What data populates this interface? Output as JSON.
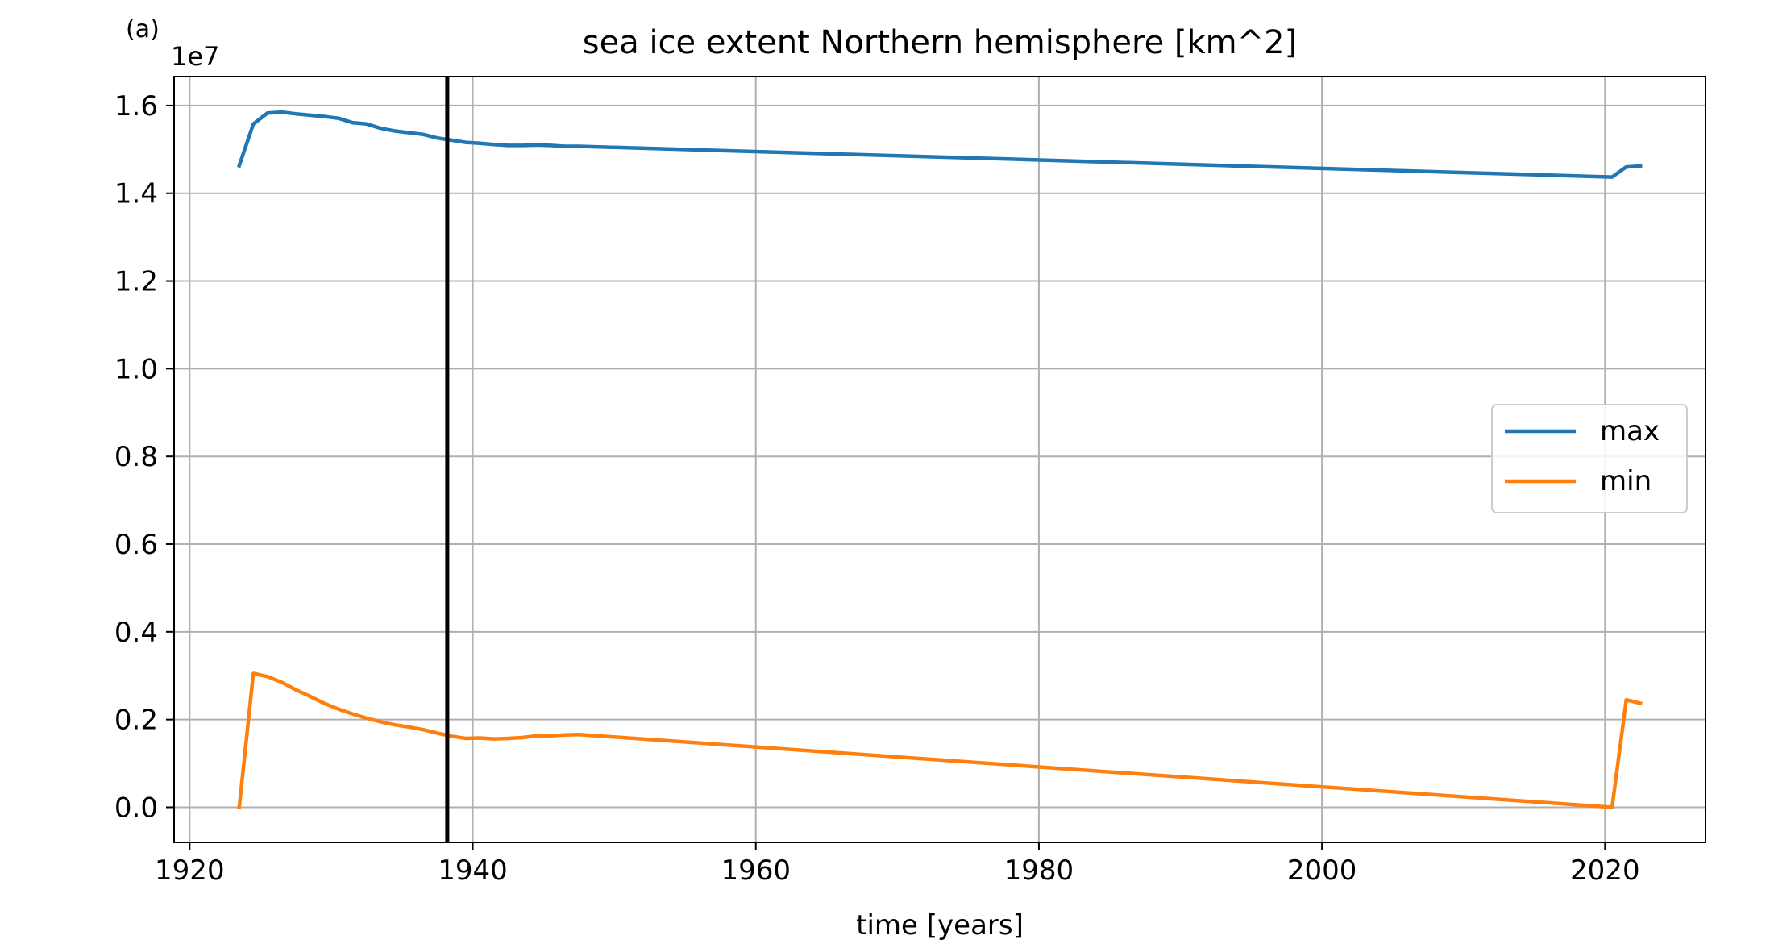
{
  "panel_label": "(a)",
  "chart_data": {
    "type": "line",
    "title": "sea ice extent Northern hemisphere [km^2]",
    "xlabel": "time [years]",
    "ylabel": "",
    "y_offset_label": "1e7",
    "y_scale": 10000000,
    "xlim": [
      1918.9,
      2027.1
    ],
    "ylim": [
      -0.08,
      1.666
    ],
    "x_ticks": [
      1920,
      1940,
      1960,
      1980,
      2000,
      2020
    ],
    "x_tick_labels": [
      "1920",
      "1940",
      "1960",
      "1980",
      "2000",
      "2020"
    ],
    "y_ticks": [
      0.0,
      0.2,
      0.4,
      0.6,
      0.8,
      1.0,
      1.2,
      1.4,
      1.6
    ],
    "y_tick_labels": [
      "0.0",
      "0.2",
      "0.4",
      "0.6",
      "0.8",
      "1.0",
      "1.2",
      "1.4",
      "1.6"
    ],
    "grid": true,
    "legend_position": "center-right",
    "vertical_line_x": 1938.2,
    "vertical_line_color": "#000000",
    "series": [
      {
        "name": "max",
        "color": "#1f77b4",
        "x": [
          1923.5,
          1924.5,
          1925.5,
          1926.5,
          1927.5,
          1928.5,
          1929.5,
          1930.5,
          1931.5,
          1932.5,
          1933.5,
          1934.5,
          1935.5,
          1936.5,
          1937.5,
          1938.5,
          1939.5,
          1940.5,
          1941.5,
          1942.5,
          1943.5,
          1944.5,
          1945.5,
          1946.5,
          1947.5,
          2020.5,
          2021.5,
          2022.5
        ],
        "y": [
          1.463,
          1.558,
          1.583,
          1.585,
          1.581,
          1.578,
          1.575,
          1.571,
          1.561,
          1.558,
          1.548,
          1.542,
          1.538,
          1.534,
          1.526,
          1.521,
          1.516,
          1.514,
          1.511,
          1.509,
          1.509,
          1.51,
          1.509,
          1.507,
          1.507,
          1.437,
          1.46,
          1.462
        ]
      },
      {
        "name": "min",
        "color": "#ff7f0e",
        "x": [
          1923.5,
          1924.5,
          1925.5,
          1926.5,
          1927.5,
          1928.5,
          1929.5,
          1930.5,
          1931.5,
          1932.5,
          1933.5,
          1934.5,
          1935.5,
          1936.5,
          1937.5,
          1938.5,
          1939.5,
          1940.5,
          1941.5,
          1942.5,
          1943.5,
          1944.5,
          1945.5,
          1946.5,
          1947.5,
          2020.5,
          2021.5,
          2022.5
        ],
        "y": [
          0.0,
          0.305,
          0.298,
          0.285,
          0.268,
          0.253,
          0.237,
          0.224,
          0.213,
          0.203,
          0.195,
          0.188,
          0.183,
          0.177,
          0.169,
          0.162,
          0.157,
          0.158,
          0.156,
          0.157,
          0.159,
          0.163,
          0.163,
          0.165,
          0.166,
          0.0,
          0.245,
          0.237
        ]
      }
    ]
  }
}
